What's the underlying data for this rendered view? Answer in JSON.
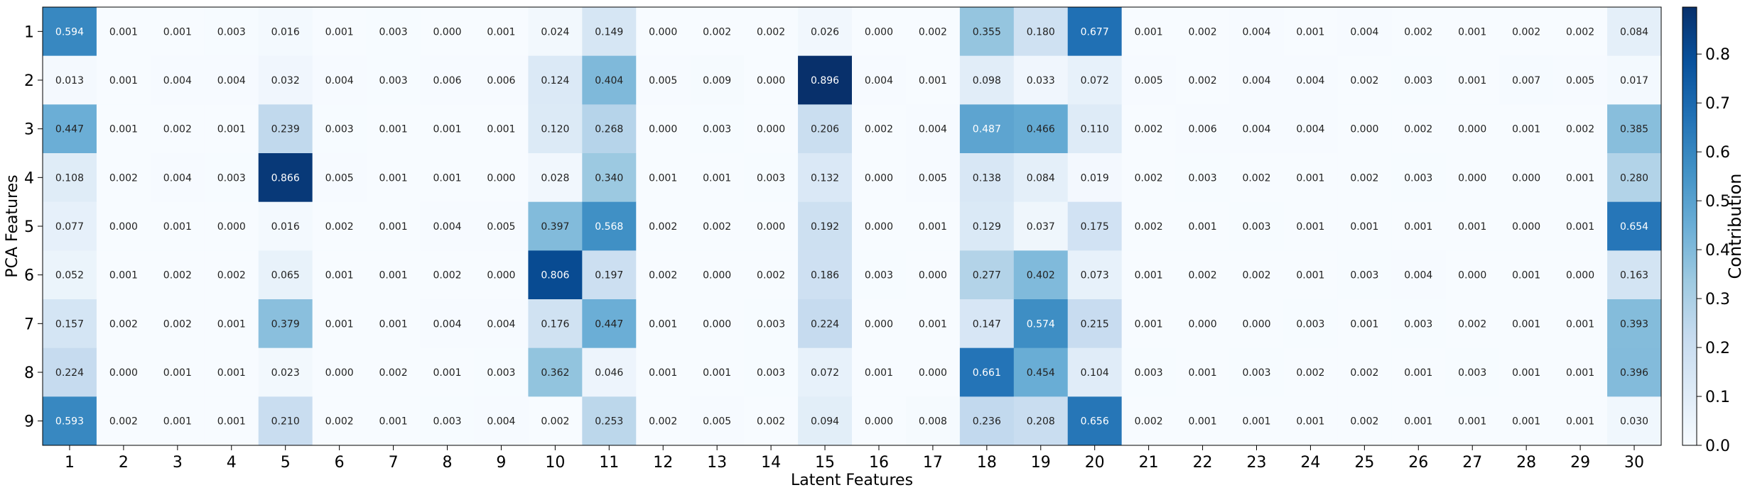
{
  "chart_data": {
    "type": "heatmap",
    "xlabel": "Latent Features",
    "ylabel": "PCA Features",
    "colorbar_label": "Contribution",
    "colormap": "Blues",
    "vmin": 0.0,
    "vmax": 0.896,
    "x_ticks": [
      "1",
      "2",
      "3",
      "4",
      "5",
      "6",
      "7",
      "8",
      "9",
      "10",
      "11",
      "12",
      "13",
      "14",
      "15",
      "16",
      "17",
      "18",
      "19",
      "20",
      "21",
      "22",
      "23",
      "24",
      "25",
      "26",
      "27",
      "28",
      "29",
      "30"
    ],
    "y_ticks": [
      "1",
      "2",
      "3",
      "4",
      "5",
      "6",
      "7",
      "8",
      "9"
    ],
    "colorbar_ticks": [
      "0.0",
      "0.1",
      "0.2",
      "0.3",
      "0.4",
      "0.5",
      "0.6",
      "0.7",
      "0.8"
    ],
    "values": [
      [
        0.594,
        0.001,
        0.001,
        0.003,
        0.016,
        0.001,
        0.003,
        0.0,
        0.001,
        0.024,
        0.149,
        0.0,
        0.002,
        0.002,
        0.026,
        0.0,
        0.002,
        0.355,
        0.18,
        0.677,
        0.001,
        0.002,
        0.004,
        0.001,
        0.004,
        0.002,
        0.001,
        0.002,
        0.002,
        0.084
      ],
      [
        0.013,
        0.001,
        0.004,
        0.004,
        0.032,
        0.004,
        0.003,
        0.006,
        0.006,
        0.124,
        0.404,
        0.005,
        0.009,
        0.0,
        0.896,
        0.004,
        0.001,
        0.098,
        0.033,
        0.072,
        0.005,
        0.002,
        0.004,
        0.004,
        0.002,
        0.003,
        0.001,
        0.007,
        0.005,
        0.017
      ],
      [
        0.447,
        0.001,
        0.002,
        0.001,
        0.239,
        0.003,
        0.001,
        0.001,
        0.001,
        0.12,
        0.268,
        0.0,
        0.003,
        0.0,
        0.206,
        0.002,
        0.004,
        0.487,
        0.466,
        0.11,
        0.002,
        0.006,
        0.004,
        0.004,
        0.0,
        0.002,
        0.0,
        0.001,
        0.002,
        0.385
      ],
      [
        0.108,
        0.002,
        0.004,
        0.003,
        0.866,
        0.005,
        0.001,
        0.001,
        0.0,
        0.028,
        0.34,
        0.001,
        0.001,
        0.003,
        0.132,
        0.0,
        0.005,
        0.138,
        0.084,
        0.019,
        0.002,
        0.003,
        0.002,
        0.001,
        0.002,
        0.003,
        0.0,
        0.0,
        0.001,
        0.28
      ],
      [
        0.077,
        0.0,
        0.001,
        0.0,
        0.016,
        0.002,
        0.001,
        0.004,
        0.005,
        0.397,
        0.568,
        0.002,
        0.002,
        0.0,
        0.192,
        0.0,
        0.001,
        0.129,
        0.037,
        0.175,
        0.002,
        0.001,
        0.003,
        0.001,
        0.001,
        0.001,
        0.001,
        0.0,
        0.001,
        0.654
      ],
      [
        0.052,
        0.001,
        0.002,
        0.002,
        0.065,
        0.001,
        0.001,
        0.002,
        0.0,
        0.806,
        0.197,
        0.002,
        0.0,
        0.002,
        0.186,
        0.003,
        0.0,
        0.277,
        0.402,
        0.073,
        0.001,
        0.002,
        0.002,
        0.001,
        0.003,
        0.004,
        0.0,
        0.001,
        0.0,
        0.163
      ],
      [
        0.157,
        0.002,
        0.002,
        0.001,
        0.379,
        0.001,
        0.001,
        0.004,
        0.004,
        0.176,
        0.447,
        0.001,
        0.0,
        0.003,
        0.224,
        0.0,
        0.001,
        0.147,
        0.574,
        0.215,
        0.001,
        0.0,
        0.0,
        0.003,
        0.001,
        0.003,
        0.002,
        0.001,
        0.001,
        0.393
      ],
      [
        0.224,
        0.0,
        0.001,
        0.001,
        0.023,
        0.0,
        0.002,
        0.001,
        0.003,
        0.362,
        0.046,
        0.001,
        0.001,
        0.003,
        0.072,
        0.001,
        0.0,
        0.661,
        0.454,
        0.104,
        0.003,
        0.001,
        0.003,
        0.002,
        0.002,
        0.001,
        0.003,
        0.001,
        0.001,
        0.396
      ],
      [
        0.593,
        0.002,
        0.001,
        0.001,
        0.21,
        0.002,
        0.001,
        0.003,
        0.004,
        0.002,
        0.253,
        0.002,
        0.005,
        0.002,
        0.094,
        0.0,
        0.008,
        0.236,
        0.208,
        0.656,
        0.002,
        0.001,
        0.001,
        0.001,
        0.002,
        0.001,
        0.001,
        0.001,
        0.001,
        0.03
      ]
    ]
  }
}
